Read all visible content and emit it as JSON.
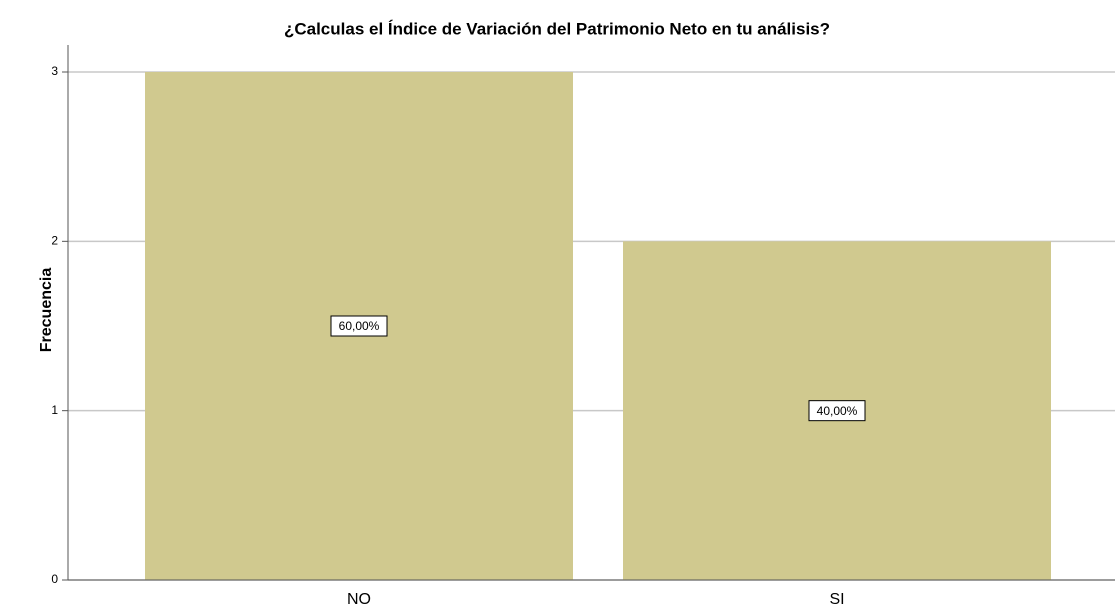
{
  "chart_data": {
    "type": "bar",
    "title": "¿Calculas el Índice de Variación del Patrimonio Neto en tu análisis?",
    "y_label": "Frecuencia",
    "categories": [
      "NO",
      "SI"
    ],
    "values": [
      3,
      2
    ],
    "color": "#d0c98f",
    "percent": [
      60,
      40
    ],
    "percent_labels": [
      "60,00%",
      "40,00%"
    ],
    "ylim": [
      0,
      3
    ],
    "yticks": [
      0,
      1,
      2,
      3
    ],
    "grid": true
  }
}
